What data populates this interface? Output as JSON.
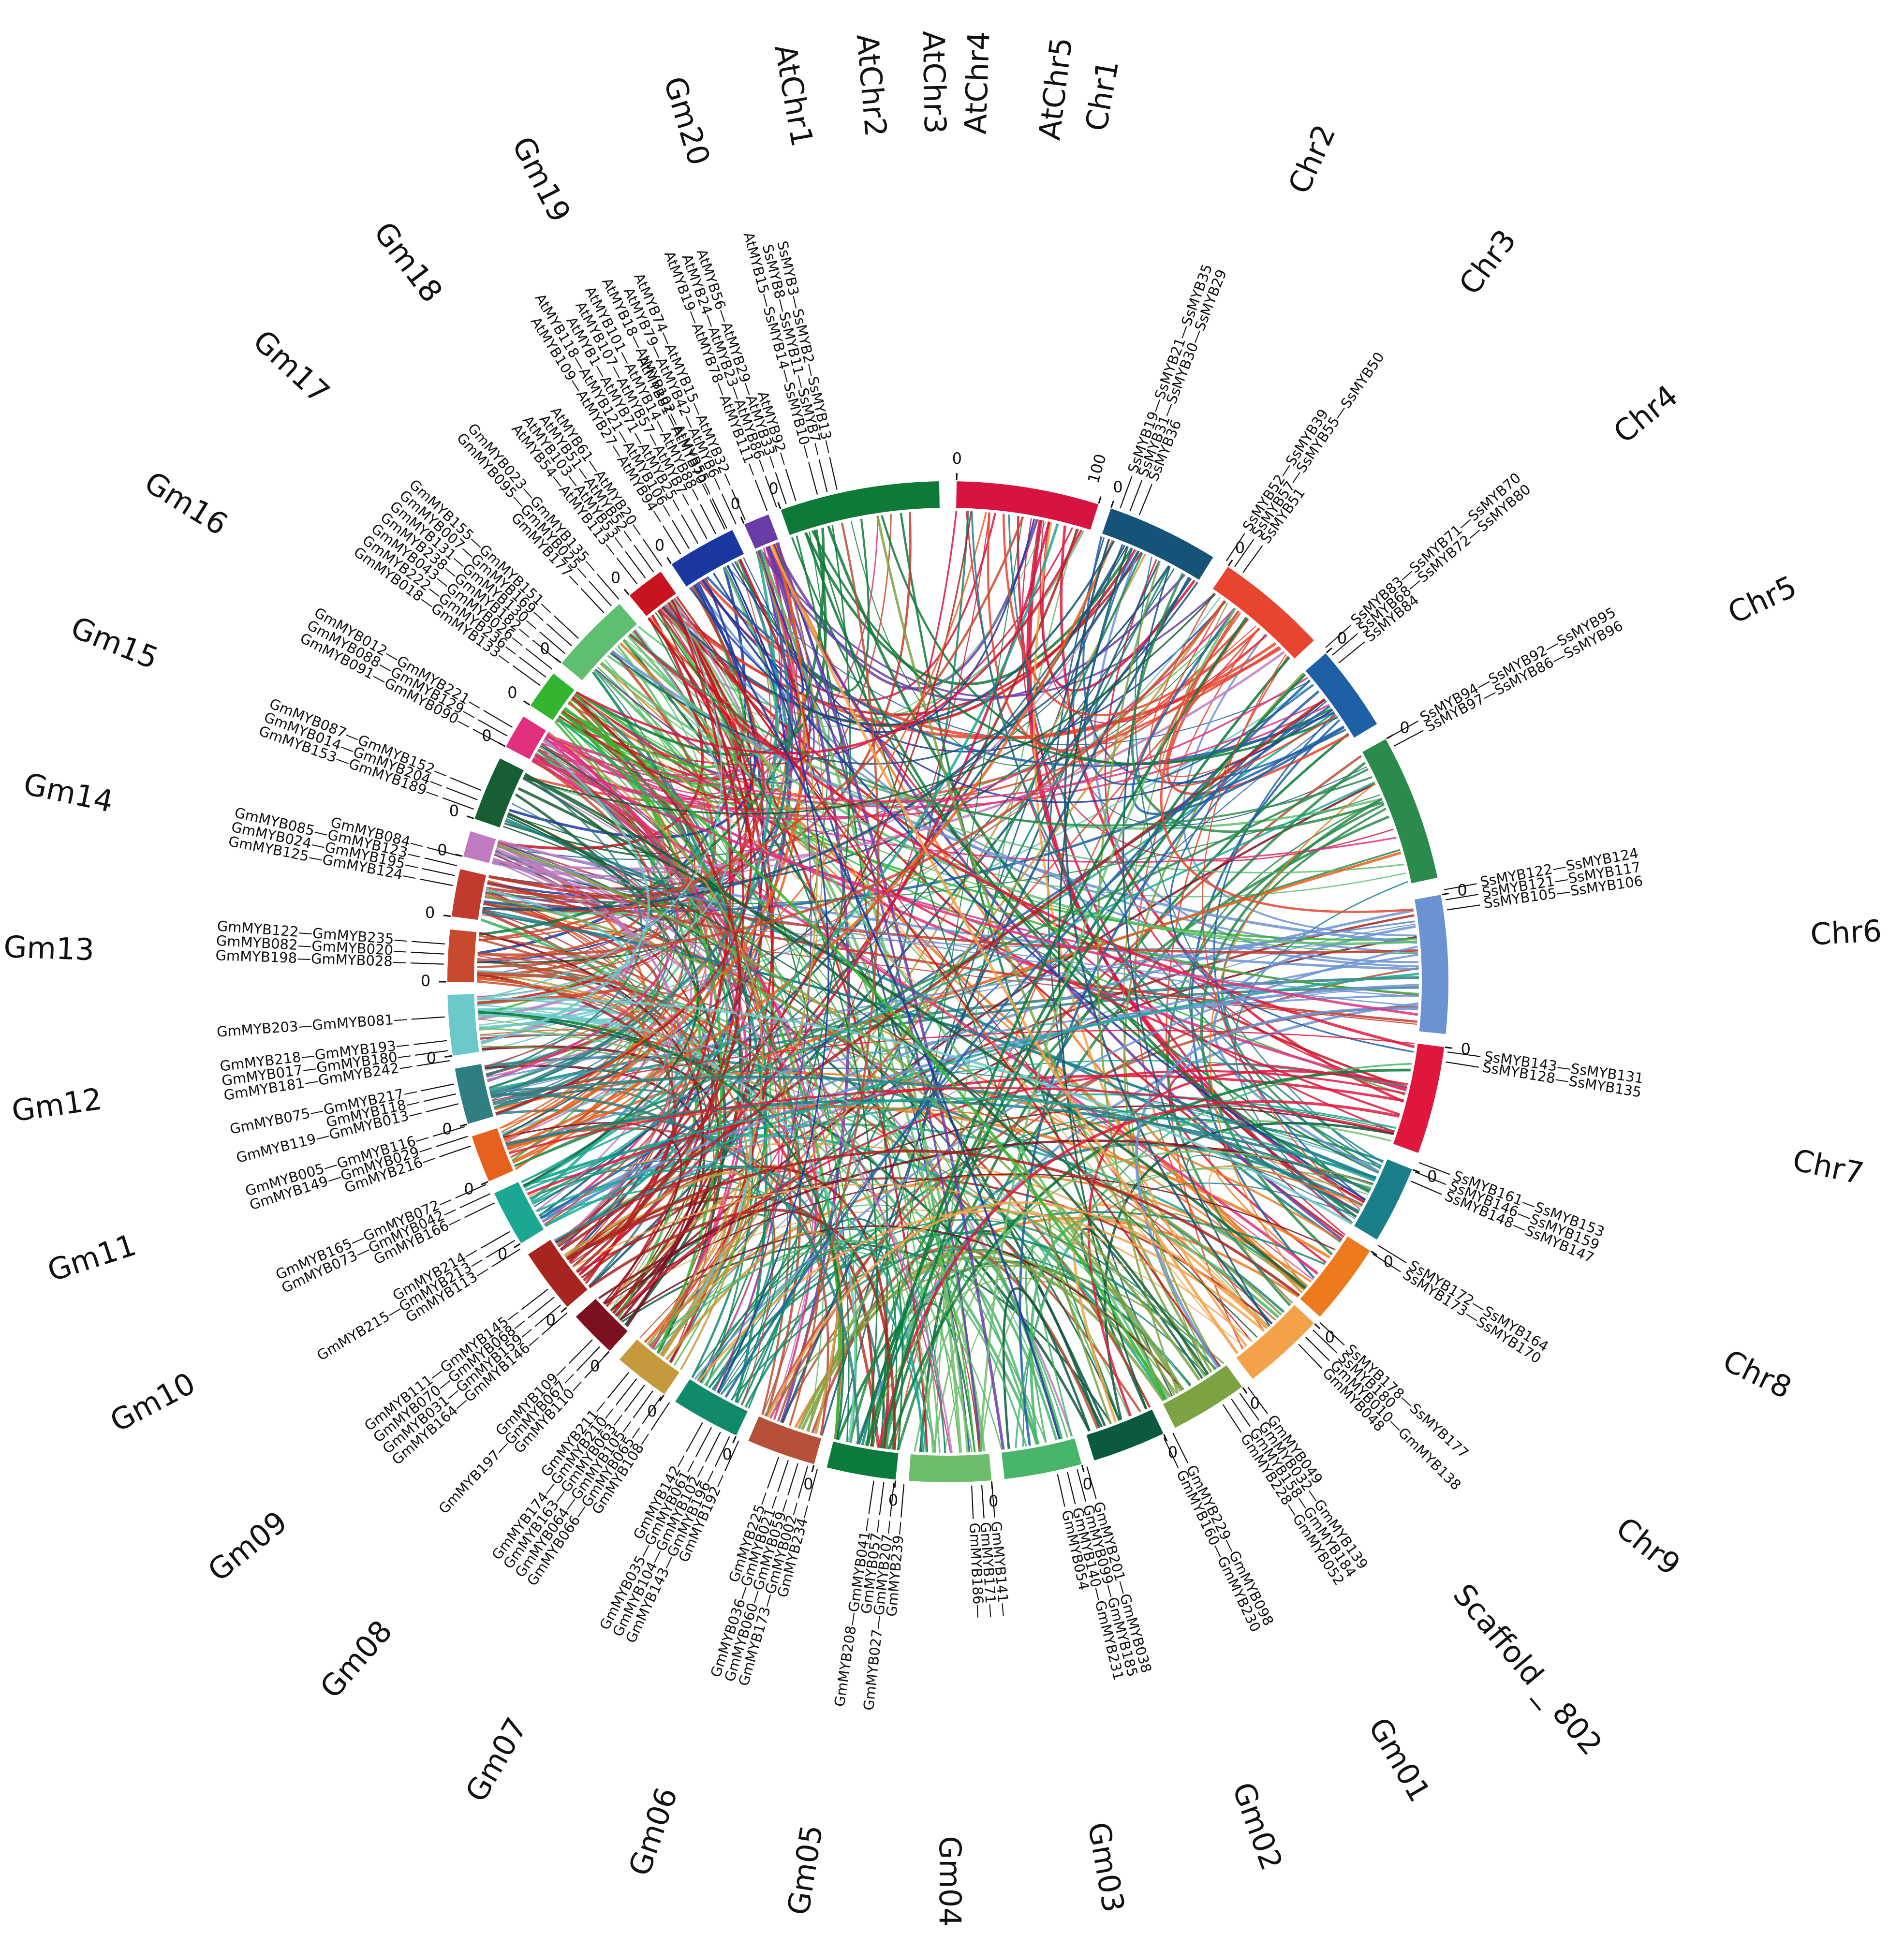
{
  "diagram": {
    "type": "circos-synteny",
    "segments": [
      {
        "name": "Chr1",
        "color": "#d7143f",
        "start_tick": "0",
        "end_tick": "100"
      },
      {
        "name": "Chr2",
        "color": "#165378",
        "start_tick": "0"
      },
      {
        "name": "Chr3",
        "color": "#e84530",
        "start_tick": "0"
      },
      {
        "name": "Chr4",
        "color": "#1f5fa6",
        "start_tick": "0"
      },
      {
        "name": "Chr5",
        "color": "#2a8b4c",
        "start_tick": "0"
      },
      {
        "name": "Chr6",
        "color": "#6b93d4",
        "start_tick": "0"
      },
      {
        "name": "Chr7",
        "color": "#e0173c",
        "start_tick": "0"
      },
      {
        "name": "Chr8",
        "color": "#1a7f8a",
        "start_tick": "0"
      },
      {
        "name": "Chr9",
        "color": "#ee7a1e",
        "start_tick": "0"
      },
      {
        "name": "Scaffold _ 802",
        "color": "#f3a24a",
        "start_tick": "0"
      },
      {
        "name": "Gm01",
        "color": "#7da242",
        "start_tick": "0"
      },
      {
        "name": "Gm02",
        "color": "#0b5a3f",
        "start_tick": "0"
      },
      {
        "name": "Gm03",
        "color": "#48b56a",
        "start_tick": "0"
      },
      {
        "name": "Gm04",
        "color": "#6dbd6c",
        "start_tick": "0"
      },
      {
        "name": "Gm05",
        "color": "#0b7a3a",
        "start_tick": "0"
      },
      {
        "name": "Gm06",
        "color": "#b6503a",
        "start_tick": "0"
      },
      {
        "name": "Gm07",
        "color": "#108a6a",
        "start_tick": "0"
      },
      {
        "name": "Gm08",
        "color": "#c49a3c",
        "start_tick": "0"
      },
      {
        "name": "Gm09",
        "color": "#7a1020",
        "start_tick": "0"
      },
      {
        "name": "Gm10",
        "color": "#a8241e",
        "start_tick": "0"
      },
      {
        "name": "Gm11",
        "color": "#1aa892",
        "start_tick": "0"
      },
      {
        "name": "Gm12",
        "color": "#e8601e",
        "start_tick": "0"
      },
      {
        "name": "Gm13",
        "color": "#2e7e82",
        "start_tick": "0"
      },
      {
        "name": "Gm14",
        "color": "#6cc9c9",
        "start_tick": "0"
      },
      {
        "name": "Gm15",
        "color": "#c84a2e",
        "start_tick": "0"
      },
      {
        "name": "Gm16",
        "color": "#c23a2e",
        "start_tick": "0"
      },
      {
        "name": "Gm17",
        "color": "#c07ac0",
        "start_tick": "0"
      },
      {
        "name": "Gm18",
        "color": "#175e34",
        "start_tick": "0"
      },
      {
        "name": "Gm19",
        "color": "#e0307e",
        "start_tick": "0"
      },
      {
        "name": "Gm20",
        "color": "#34b531",
        "start_tick": "0"
      },
      {
        "name": "AtChr1",
        "color": "#5fbf70",
        "start_tick": "0"
      },
      {
        "name": "AtChr2",
        "color": "#c8141e",
        "start_tick": "0"
      },
      {
        "name": "AtChr3",
        "color": "#1a37a0",
        "start_tick": "0"
      },
      {
        "name": "AtChr4",
        "color": "#6a3ca8",
        "start_tick": "0"
      },
      {
        "name": "AtChr5",
        "color": "#0f7a38",
        "start_tick": "0"
      }
    ],
    "gene_labels": [
      {
        "segment": "Chr2",
        "rows": [
          "SsMYB19—SsMYB21—SsMYB35",
          "SsMYB31—SsMYB30—SsMYB29",
          "SsMYB36"
        ]
      },
      {
        "segment": "Chr3",
        "rows": [
          "SsMYB52—SsMYB39",
          "SsMYB57—SsMYB55—SsMYB50",
          "SsMYB51"
        ]
      },
      {
        "segment": "Chr4",
        "rows": [
          "SsMYB83—SsMYB71—SsMYB70",
          "SsMYB68—SsMYB72—SsMYB80",
          "SsMYB84"
        ]
      },
      {
        "segment": "Chr5",
        "rows": [
          "SsMYB94—SsMYB92—SsMYB95",
          "SsMYB97—SsMYB86—SsMYB96"
        ]
      },
      {
        "segment": "Chr6",
        "rows": [
          "SsMYB122—SsMYB124",
          "SsMYB121—SsMYB117",
          "SsMYB105—SsMYB106"
        ]
      },
      {
        "segment": "Chr7",
        "rows": [
          "SsMYB143—SsMYB131",
          "SsMYB128—SsMYB135"
        ]
      },
      {
        "segment": "Chr8",
        "rows": [
          "SsMYB161—SsMYB153",
          "SsMYB146—SsMYB159",
          "SsMYB148—SsMYB147"
        ]
      },
      {
        "segment": "Chr9",
        "rows": [
          "SsMYB172—SsMYB164",
          "SsMYB173—SsMYB170"
        ]
      },
      {
        "segment": "Scaffold _ 802",
        "rows": [
          "SsMYB178—SsMYB177",
          "SsMYB180",
          "GmMYB010—GmMYB138",
          "GmMYB048"
        ]
      },
      {
        "segment": "Gm01",
        "rows": [
          "GmMYB049",
          "GmMYB032—GmMYB139",
          "GmMYB158—GmMYB184",
          "GmMYB228—GmMYB052"
        ]
      },
      {
        "segment": "Gm02",
        "rows": [
          "GmMYB229—GmMYB098",
          "GmMYB160—GmMYB230"
        ]
      },
      {
        "segment": "Gm03",
        "rows": [
          "GmMYB201—GmMYB038",
          "GmMYB099—GmMYB185",
          "GmMYB140—GmMYB231",
          "GmMYB054"
        ]
      },
      {
        "segment": "Gm04",
        "rows": [
          "GmMYB141—",
          "GmMYB171—",
          "GmMYB186—"
        ]
      },
      {
        "segment": "Gm05",
        "rows": [
          "GmMYB239—",
          "GmMYB027—GmMYB207—",
          "GmMYB057—",
          "GmMYB208—GmMYB041—"
        ]
      },
      {
        "segment": "Gm06",
        "rows": [
          "GmMYB234—",
          "GmMYB173—GmMYB002—",
          "GmMYB060—GmMYB059—",
          "GmMYB036—GmMYB021—",
          "GmMYB225—"
        ]
      },
      {
        "segment": "Gm07",
        "rows": [
          "GmMYB192—",
          "GmMYB143—GmMYB196—",
          "GmMYB104—GmMYB102—",
          "GmMYB035—GmMYB061—",
          "GmMYB142—"
        ]
      },
      {
        "segment": "Gm08",
        "rows": [
          "GmMYB108—",
          "GmMYB066—GmMYB065—",
          "GmMYB064—GmMYB105—",
          "GmMYB163—GmMYB063—",
          "GmMYB174—GmMYB210—",
          "GmMYB211—"
        ]
      },
      {
        "segment": "Gm09",
        "rows": [
          "GmMYB110—",
          "GmMYB197—GmMYB067—",
          "GmMYB109—"
        ]
      },
      {
        "segment": "Gm10",
        "rows": [
          "GmMYB164—GmMYB146—",
          "GmMYB031—GmMYB159—",
          "GmMYB070—GmMYB068—",
          "GmMYB111—GmMYB145—"
        ]
      },
      {
        "segment": "Gm11",
        "rows": [
          "GmMYB113—",
          "GmMYB215—GmMYB213—",
          "GmMYB214—"
        ]
      },
      {
        "segment": "Gm12",
        "rows": [
          "GmMYB166—",
          "GmMYB073—GmMYB042—",
          "GmMYB165—GmMYB072—"
        ]
      },
      {
        "segment": "Gm12b",
        "rows": [
          "GmMYB216—",
          "GmMYB149—GmMYB029—",
          "GmMYB005—GmMYB116—"
        ]
      },
      {
        "segment": "Gm13",
        "rows": [
          "GmMYB119—GmMYB013—",
          "GmMYB118—",
          "GmMYB075—GmMYB217—"
        ]
      },
      {
        "segment": "Gm13b",
        "rows": [
          "GmMYB181—GmMYB242—",
          "GmMYB017—GmMYB180—",
          "GmMYB218—GmMYB193—"
        ]
      },
      {
        "segment": "Gm14",
        "rows": [
          "GmMYB203—GmMYB081—"
        ]
      },
      {
        "segment": "Gm15",
        "rows": [
          "GmMYB198—GmMYB028—",
          "GmMYB082—GmMYB020—",
          "GmMYB122—GmMYB235—"
        ]
      },
      {
        "segment": "Gm16",
        "rows": [
          "GmMYB125—GmMYB124—",
          "GmMYB024—GmMYB195—",
          "GmMYB085—GmMYB123—",
          "GmMYB084—"
        ]
      },
      {
        "segment": "Gm17",
        "rows": [
          "GmMYB153—GmMYB189—",
          "GmMYB014—GmMYB204—",
          "GmMYB087—GmMYB152—"
        ]
      },
      {
        "segment": "Gm18",
        "rows": [
          "GmMYB091—GmMYB090—",
          "GmMYB088—GmMYB129—",
          "GmMYB012—GmMYB221—"
        ]
      },
      {
        "segment": "Gm19",
        "rows": [
          "GmMYB018—GmMYB133—",
          "GmMYB222—GmMYB236—",
          "GmMYB043—GmMYB026—",
          "GmMYB238—GmMYB182—",
          "GmMYB131—GmMYB130—",
          "GmMYB007—GmMYB169—",
          "GmMYB155—GmMYB151—"
        ]
      },
      {
        "segment": "Gm20",
        "rows": [
          "GmMYB177—",
          "GmMYB095—GmMYB025—",
          "GmMYB023—GmMYB135—"
        ]
      },
      {
        "segment": "AtChr1",
        "rows": [
          "AtMYB54—AtMYB113—",
          "AtMYB103—AtMYB53—",
          "AtMYB51—AtMYB52—",
          "AtMYB61—AtMYB20—"
        ]
      },
      {
        "segment": "AtChr2",
        "rows": [
          "AtMYB109—AtMYB27—AtMYB94—",
          "AtMYB118—AtMYB121—AtMYB106—",
          "AtMYB1—AtMYB71—AtMYB25—",
          "AtMYB107—AtMYB57—AtMYB7—",
          "AtMYB101—AtMYB14—AtMYB88—",
          "AtMYB81—AtMYB70—"
        ]
      },
      {
        "segment": "AtChr3",
        "rows": [
          "AtMYB18—AtMYB102—AtMYB55—",
          "AtMYB79—AtMYB42—AtMYB6—",
          "AtMYB74—AtMYB15—AtMYB32—"
        ]
      },
      {
        "segment": "AtChr4",
        "rows": [
          "AtMYB19—AtMYB78—AtMYB111—",
          "AtMYB24—AtMYB23—AtMYB86—",
          "AtMYB56—AtMYB29—AtMYB33—",
          "AtMYB92—"
        ]
      },
      {
        "segment": "Chr1",
        "rows": [
          "AtMYB15—SsMYB14—SsMYB10—",
          "SsMYB8—SsMYB11—SsMYB7—",
          "SsMYB3—SsMYB2—SsMYB13—"
        ]
      }
    ],
    "colors": {
      "background": "#ffffff",
      "text": "#111111"
    }
  }
}
